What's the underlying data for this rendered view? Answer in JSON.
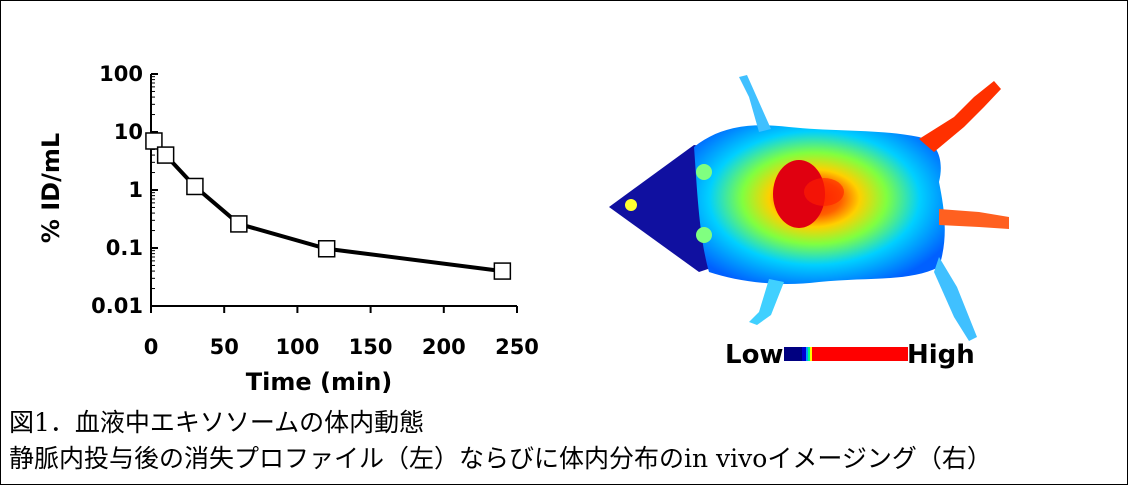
{
  "chart_data": {
    "type": "line",
    "xlabel": "Time (min)",
    "ylabel": "% ID/mL",
    "xlim": [
      0,
      250
    ],
    "ylim": [
      0.01,
      100
    ],
    "y_scale": "log",
    "grid": false,
    "x_ticks": [
      "0",
      "50",
      "100",
      "150",
      "200",
      "250"
    ],
    "y_ticks": [
      "0.01",
      "0.1",
      "1",
      "10",
      "100"
    ],
    "series": [
      {
        "x": [
          2,
          10,
          30,
          60,
          120,
          240
        ],
        "values": [
          7.0,
          4.0,
          1.15,
          0.26,
          0.097,
          0.04
        ],
        "marker": "square-open",
        "color": "#000000"
      }
    ]
  },
  "imaging": {
    "legend_low": "Low",
    "legend_high": "High",
    "scale_colors": [
      "#000080",
      "#0000d0",
      "#00a0ff",
      "#00ff80",
      "#ffff00",
      "#ff0000"
    ]
  },
  "caption": {
    "title": "図1．血液中エキソソームの体内動態",
    "description": "静脈内投与後の消失プロファイル（左）ならびに体内分布のin vivoイメージング（右）"
  }
}
